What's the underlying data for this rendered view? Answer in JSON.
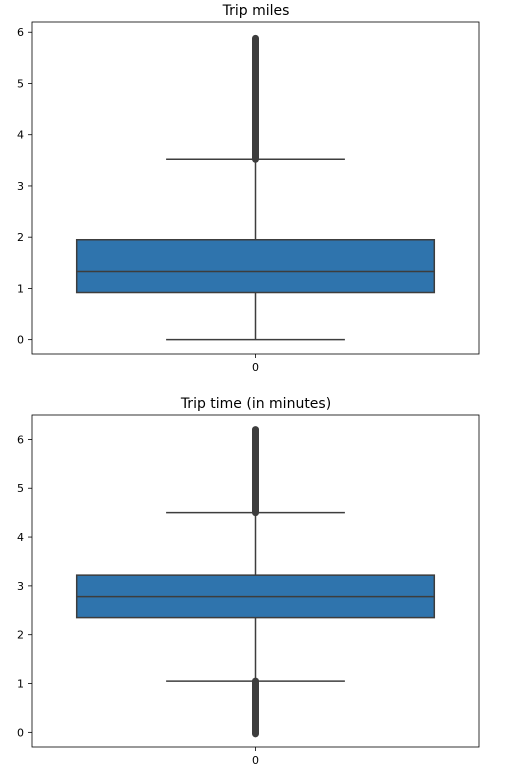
{
  "chart_data": [
    {
      "type": "box",
      "title": "Trip miles",
      "xlabel": "",
      "ylabel": "",
      "categories": [
        "0"
      ],
      "yticks": [
        0,
        1,
        2,
        3,
        4,
        5,
        6
      ],
      "ylim": [
        -0.28,
        6.2
      ],
      "box": {
        "whisker_low": 0.0,
        "q1": 0.92,
        "median": 1.33,
        "q3": 1.95,
        "whisker_high": 3.52
      },
      "outliers_low": null,
      "outliers_high": [
        3.52,
        5.88
      ],
      "box_color": "#2f74ad",
      "line_color": "#3d3d3d"
    },
    {
      "type": "box",
      "title": "Trip time (in minutes)",
      "xlabel": "",
      "ylabel": "",
      "categories": [
        "0"
      ],
      "yticks": [
        0,
        1,
        2,
        3,
        4,
        5,
        6
      ],
      "ylim": [
        -0.3,
        6.5
      ],
      "box": {
        "whisker_low": 1.05,
        "q1": 2.35,
        "median": 2.78,
        "q3": 3.22,
        "whisker_high": 4.5
      },
      "outliers_low": [
        -0.03,
        1.05
      ],
      "outliers_high": [
        4.5,
        6.2
      ],
      "box_color": "#2f74ad",
      "line_color": "#3d3d3d"
    }
  ]
}
